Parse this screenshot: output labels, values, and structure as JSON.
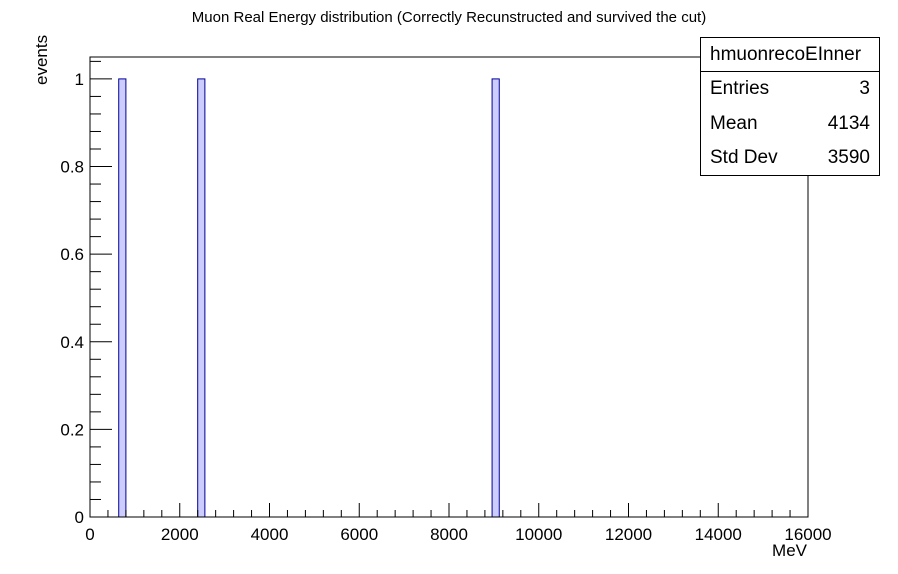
{
  "chart_data": {
    "type": "bar",
    "title": "Muon Real Energy distribution (Correctly Recunstructed and survived the cut)",
    "xlabel": "MeV",
    "ylabel": "events",
    "xlim": [
      0,
      16000
    ],
    "ylim": [
      0,
      1.05
    ],
    "bin_width": 160,
    "x_ticks": [
      "0",
      "2000",
      "4000",
      "6000",
      "8000",
      "10000",
      "12000",
      "14000",
      "16000"
    ],
    "y_ticks": [
      "0",
      "0.2",
      "0.4",
      "0.6",
      "0.8",
      "1"
    ],
    "bins": [
      {
        "x_low": 640,
        "x_high": 800,
        "value": 1
      },
      {
        "x_low": 2400,
        "x_high": 2560,
        "value": 1
      },
      {
        "x_low": 8960,
        "x_high": 9120,
        "value": 1
      }
    ],
    "fill_color": "#ccccff",
    "line_color": "#000099",
    "grid": false,
    "stats_box": {
      "name": "hmuonrecoEInner",
      "entries_label": "Entries",
      "entries_value": "3",
      "mean_label": "Mean",
      "mean_value": "4134",
      "stddev_label": "Std Dev",
      "stddev_value": "3590"
    }
  }
}
